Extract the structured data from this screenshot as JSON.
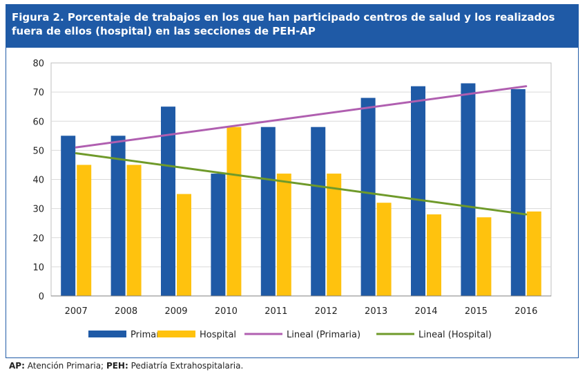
{
  "title": "Figura 2. Porcentaje de trabajos en los que han participado centros de salud y los realizados fuera de ellos (hospital) en las secciones de PEH-AP",
  "footnote": {
    "ap_abbr": "AP:",
    "ap_text": "Atención Primaria;",
    "peh_abbr": "PEH:",
    "peh_text": "Pediatría Extrahospitalaria."
  },
  "colors": {
    "title_bg": "#1f5aa6",
    "primaria": "#1f5aa6",
    "hospital": "#ffc20e",
    "lineal_primaria": "#b05fb0",
    "lineal_hospital": "#6f9a2a",
    "grid": "#d9d9d9"
  },
  "chart_data": {
    "type": "bar",
    "categories": [
      "2007",
      "2008",
      "2009",
      "2010",
      "2011",
      "2012",
      "2013",
      "2014",
      "2015",
      "2016"
    ],
    "series": [
      {
        "name": "Primaria",
        "values": [
          55,
          55,
          65,
          42,
          58,
          58,
          68,
          72,
          73,
          71
        ]
      },
      {
        "name": "Hospital",
        "values": [
          45,
          45,
          35,
          58,
          42,
          42,
          32,
          28,
          27,
          29
        ]
      }
    ],
    "trendlines": [
      {
        "name": "Lineal (Primaria)",
        "of": "Primaria",
        "start": 51,
        "end": 72
      },
      {
        "name": "Lineal (Hospital)",
        "of": "Hospital",
        "start": 49,
        "end": 28
      }
    ],
    "ylim": [
      0,
      80
    ],
    "yticks": [
      0,
      10,
      20,
      30,
      40,
      50,
      60,
      70,
      80
    ],
    "grid": true,
    "legend_position": "bottom"
  }
}
